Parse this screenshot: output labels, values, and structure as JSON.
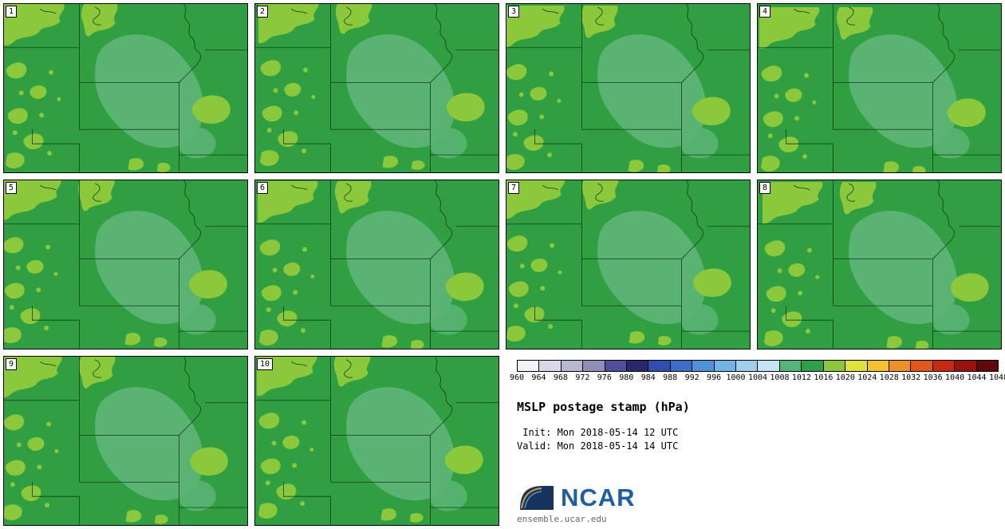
{
  "panels": [
    {
      "label": "1"
    },
    {
      "label": "2"
    },
    {
      "label": "3"
    },
    {
      "label": "4"
    },
    {
      "label": "5"
    },
    {
      "label": "6"
    },
    {
      "label": "7"
    },
    {
      "label": "8"
    },
    {
      "label": "9"
    },
    {
      "label": "10"
    }
  ],
  "colorbar": {
    "ticks": [
      "960",
      "964",
      "968",
      "972",
      "976",
      "980",
      "984",
      "988",
      "992",
      "996",
      "1000",
      "1004",
      "1008",
      "1012",
      "1016",
      "1020",
      "1024",
      "1028",
      "1032",
      "1036",
      "1040",
      "1044",
      "1048"
    ],
    "colors": [
      "#f2f2f7",
      "#d8d8e8",
      "#b8b8d0",
      "#8f8fb8",
      "#50509a",
      "#28286e",
      "#2f4eb0",
      "#3a6ec8",
      "#5290d8",
      "#74b4e4",
      "#9ed0ee",
      "#c4e6f4",
      "#55b47a",
      "#2fa048",
      "#8ec63e",
      "#dfe23e",
      "#f4c32e",
      "#ee9025",
      "#e2571d",
      "#c42a14",
      "#9a120e",
      "#5e0a08"
    ]
  },
  "legend": {
    "title": "MSLP postage stamp (hPa)",
    "init_line": " Init: Mon 2018-05-14 12 UTC",
    "valid_line": "Valid: Mon 2018-05-14 14 UTC"
  },
  "logo": {
    "text": "NCAR",
    "url_text": "ensemble.ucar.edu"
  },
  "map_colors": {
    "base": "#2f9f42",
    "low": "#5ab273",
    "high": "#8cc83c",
    "line": "#143a1a"
  }
}
